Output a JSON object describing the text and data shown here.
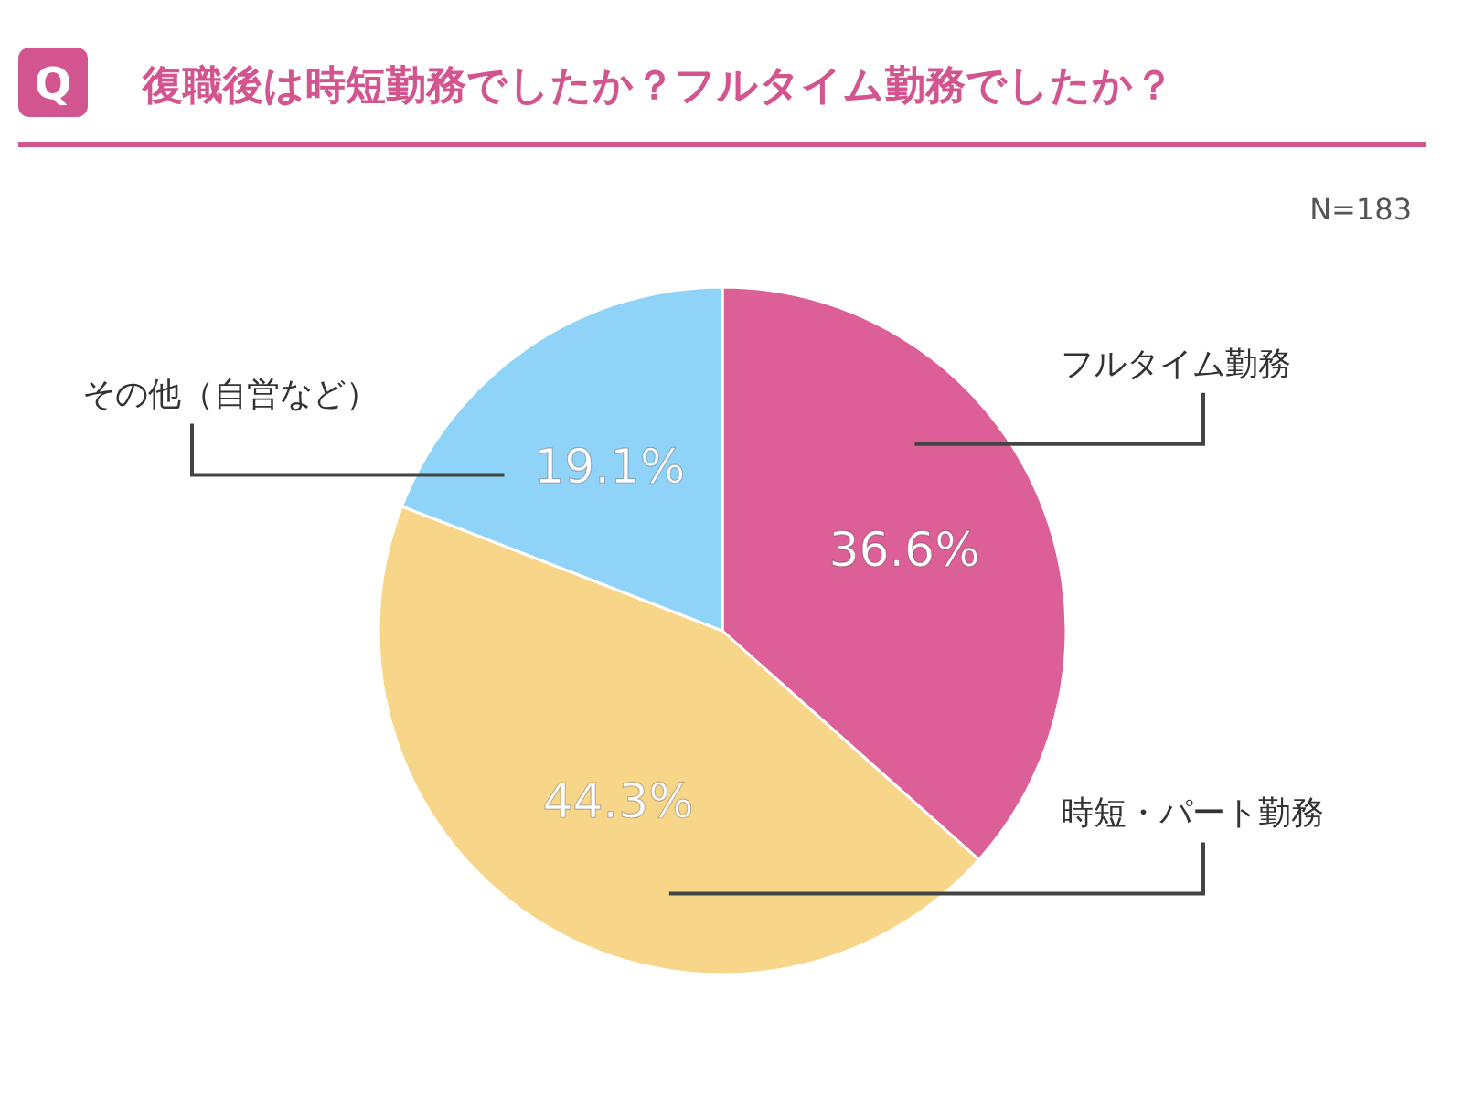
{
  "chart_data": {
    "type": "pie",
    "title": "復職後は時短勤務でしたか？フルタイム勤務でしたか？",
    "annotations": [
      "Q",
      "N=183"
    ],
    "categories": [
      "フルタイム勤務",
      "時短・パート勤務",
      "その他（自営など）"
    ],
    "values": [
      36.6,
      44.3,
      19.1
    ],
    "colors": [
      "#dc5f97",
      "#f7d68a",
      "#8fd3f8"
    ],
    "value_labels": [
      "36.6%",
      "44.3%",
      "19.1%"
    ]
  }
}
